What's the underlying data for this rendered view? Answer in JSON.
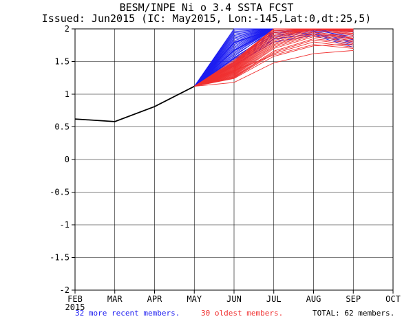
{
  "title": "BESM/INPE Ni o 3.4 SSTA FCST",
  "subtitle": "Issued: Jun2015 (IC: May2015, Lon:-145,Lat:0,dt:25,5)",
  "legend": {
    "recent": "32 more recent members.",
    "oldest": "30 oldest members.",
    "total": "TOTAL: 62 members."
  },
  "colors": {
    "recent": "#1c1cf0",
    "oldest": "#f03030",
    "observed": "#000000"
  },
  "chart_data": {
    "type": "line",
    "title": "BESM/INPE Ni o 3.4 SSTA FCST",
    "categories": [
      "FEB",
      "MAR",
      "APR",
      "MAY",
      "JUN",
      "JUL",
      "AUG",
      "SEP",
      "OCT"
    ],
    "year_label": "2015",
    "ylim": [
      -2,
      2
    ],
    "yticks": [
      "-2",
      "-1.5",
      "-1",
      "-0.5",
      "0",
      "0.5",
      "1",
      "1.5",
      "2"
    ],
    "observed": {
      "name": "observed",
      "x": [
        0,
        1,
        2,
        3
      ],
      "values": [
        0.62,
        0.58,
        0.81,
        1.12
      ]
    },
    "forecast_start": 3,
    "recent_members": [
      [
        1.12,
        1.55,
        1.95,
        2.0,
        2.0
      ],
      [
        1.12,
        1.58,
        2.0,
        2.0,
        2.0
      ],
      [
        1.12,
        1.62,
        2.0,
        2.0,
        1.95
      ],
      [
        1.12,
        1.66,
        2.0,
        2.0,
        2.0
      ],
      [
        1.12,
        1.7,
        2.0,
        2.0,
        1.9
      ],
      [
        1.12,
        1.74,
        2.0,
        2.0,
        2.0
      ],
      [
        1.12,
        1.78,
        2.0,
        2.0,
        2.0
      ],
      [
        1.12,
        1.82,
        2.0,
        2.0,
        1.95
      ],
      [
        1.12,
        1.86,
        2.0,
        2.0,
        2.0
      ],
      [
        1.12,
        1.9,
        2.0,
        2.0,
        2.0
      ],
      [
        1.12,
        1.94,
        2.0,
        2.0,
        2.0
      ],
      [
        1.12,
        1.98,
        2.0,
        2.0,
        2.0
      ],
      [
        1.12,
        2.0,
        2.0,
        2.0,
        2.0
      ],
      [
        1.12,
        1.52,
        1.92,
        2.0,
        1.85
      ],
      [
        1.12,
        1.5,
        1.88,
        1.95,
        1.8
      ],
      [
        1.12,
        1.48,
        1.85,
        1.92,
        1.75
      ],
      [
        1.12,
        1.6,
        1.97,
        2.0,
        1.98
      ],
      [
        1.12,
        1.64,
        2.0,
        2.0,
        1.96
      ],
      [
        1.12,
        1.68,
        2.0,
        2.0,
        2.0
      ],
      [
        1.12,
        1.72,
        2.0,
        2.0,
        2.0
      ],
      [
        1.12,
        1.76,
        2.0,
        2.0,
        2.0
      ],
      [
        1.12,
        1.8,
        2.0,
        2.0,
        2.0
      ],
      [
        1.12,
        1.84,
        2.0,
        2.0,
        2.0
      ],
      [
        1.12,
        1.88,
        2.0,
        2.0,
        1.97
      ],
      [
        1.12,
        1.92,
        2.0,
        2.0,
        2.0
      ],
      [
        1.12,
        1.96,
        2.0,
        2.0,
        2.0
      ],
      [
        1.12,
        1.45,
        1.8,
        1.9,
        1.72
      ],
      [
        1.12,
        1.56,
        1.94,
        1.98,
        1.88
      ],
      [
        1.12,
        1.54,
        1.9,
        1.97,
        1.83
      ],
      [
        1.12,
        1.67,
        2.0,
        2.0,
        1.99
      ],
      [
        1.12,
        1.79,
        2.0,
        2.0,
        2.0
      ],
      [
        1.12,
        1.43,
        1.84,
        1.93,
        1.78
      ]
    ],
    "oldest_members": [
      [
        1.12,
        1.18,
        1.48,
        1.62,
        1.67
      ],
      [
        1.12,
        1.25,
        1.62,
        1.8,
        1.72
      ],
      [
        1.12,
        1.28,
        1.7,
        1.88,
        1.8
      ],
      [
        1.12,
        1.3,
        1.74,
        1.92,
        1.84
      ],
      [
        1.12,
        1.32,
        1.78,
        1.95,
        1.88
      ],
      [
        1.12,
        1.34,
        1.82,
        1.98,
        1.92
      ],
      [
        1.12,
        1.36,
        1.86,
        2.0,
        1.96
      ],
      [
        1.12,
        1.38,
        1.9,
        2.0,
        1.99
      ],
      [
        1.12,
        1.4,
        1.94,
        2.0,
        2.0
      ],
      [
        1.12,
        1.42,
        1.97,
        2.0,
        2.0
      ],
      [
        1.12,
        1.44,
        2.0,
        2.0,
        2.0
      ],
      [
        1.12,
        1.46,
        2.0,
        2.0,
        2.0
      ],
      [
        1.12,
        1.48,
        2.0,
        2.0,
        1.98
      ],
      [
        1.12,
        1.5,
        2.0,
        2.0,
        1.95
      ],
      [
        1.12,
        1.27,
        1.66,
        1.85,
        1.78
      ],
      [
        1.12,
        1.31,
        1.76,
        1.93,
        1.86
      ],
      [
        1.12,
        1.35,
        1.84,
        1.99,
        1.9
      ],
      [
        1.12,
        1.39,
        1.92,
        2.0,
        1.97
      ],
      [
        1.12,
        1.43,
        1.98,
        2.0,
        2.0
      ],
      [
        1.12,
        1.47,
        2.0,
        2.0,
        2.0
      ],
      [
        1.12,
        1.33,
        1.8,
        1.96,
        1.85
      ],
      [
        1.12,
        1.37,
        1.88,
        2.0,
        1.93
      ],
      [
        1.12,
        1.41,
        1.95,
        2.0,
        1.99
      ],
      [
        1.12,
        1.29,
        1.72,
        1.9,
        1.82
      ],
      [
        1.12,
        1.26,
        1.64,
        1.83,
        1.75
      ],
      [
        1.12,
        1.36,
        1.6,
        1.76,
        1.7
      ],
      [
        1.12,
        1.45,
        2.0,
        2.0,
        2.0
      ],
      [
        1.12,
        1.49,
        2.0,
        2.0,
        1.97
      ],
      [
        1.12,
        1.52,
        2.0,
        2.0,
        2.0
      ],
      [
        1.12,
        1.24,
        1.58,
        1.74,
        1.77
      ]
    ]
  }
}
